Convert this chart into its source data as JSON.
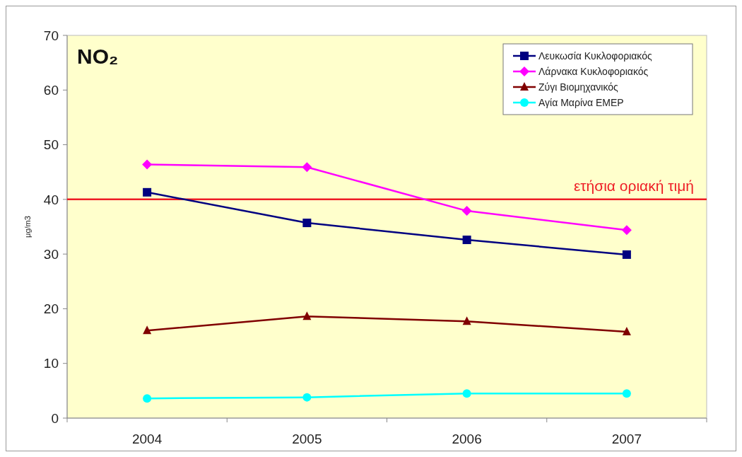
{
  "chart_data": {
    "type": "line",
    "title": "NO₂",
    "ylabel": "μg/m3",
    "categories": [
      "2004",
      "2005",
      "2006",
      "2007"
    ],
    "series": [
      {
        "name": "Λευκωσία Κυκλοφοριακός",
        "color": "#000080",
        "marker": "square",
        "values": [
          41.3,
          35.7,
          32.6,
          29.9
        ]
      },
      {
        "name": "Λάρνακα Κυκλοφοριακός",
        "color": "#ff00ff",
        "marker": "diamond",
        "values": [
          46.4,
          45.9,
          37.9,
          34.4
        ]
      },
      {
        "name": "Ζύγι Βιομηχανικός",
        "color": "#800000",
        "marker": "triangle",
        "values": [
          16.0,
          18.6,
          17.7,
          15.8
        ]
      },
      {
        "name": "Αγία Μαρίνα EMEP",
        "color": "#00ffff",
        "marker": "circle",
        "values": [
          3.6,
          3.8,
          4.5,
          4.5
        ]
      }
    ],
    "ylim": [
      0,
      70
    ],
    "yticks": [
      0,
      10,
      20,
      30,
      40,
      50,
      60,
      70
    ],
    "grid": false,
    "legend": "top right",
    "ref_lines": [
      {
        "axis": "y",
        "value": 40,
        "label": "ετήσια οριακή τιμή",
        "color": "#ee1c25"
      }
    ]
  }
}
